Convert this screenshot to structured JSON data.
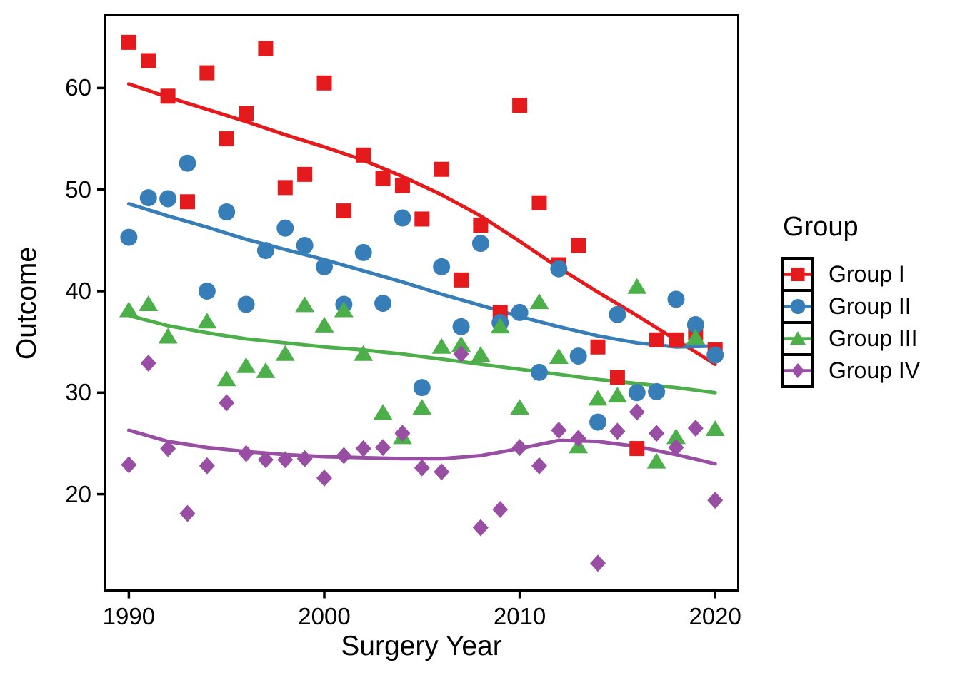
{
  "figure": {
    "background": "#FFFFFF",
    "panel": {
      "border_color": "#000000",
      "fill": "#FFFFFF",
      "gridlines": false
    }
  },
  "axes": {
    "x_title": "Surgery Year",
    "y_title": "Outcome"
  },
  "legend": {
    "title": "Group",
    "entries": [
      {
        "label": "Group I",
        "marker": "square",
        "color": "#E41A1C"
      },
      {
        "label": "Group II",
        "marker": "circle",
        "color": "#377EB8"
      },
      {
        "label": "Group III",
        "marker": "triangle",
        "color": "#4DAF4A"
      },
      {
        "label": "Group IV",
        "marker": "diamond",
        "color": "#984EA3"
      }
    ]
  },
  "chart_data": {
    "type": "scatter",
    "title": "",
    "xlabel": "Surgery Year",
    "ylabel": "Outcome",
    "xlim": [
      1988.8,
      2021.2
    ],
    "ylim": [
      10.5,
      67.2
    ],
    "x_ticks": [
      1990,
      2000,
      2010,
      2020
    ],
    "y_ticks": [
      20,
      30,
      40,
      50,
      60
    ],
    "grid": false,
    "legend_position": "right",
    "series": [
      {
        "name": "Group I",
        "marker": "square",
        "color": "#E41A1C",
        "x": [
          1990,
          1991,
          1992,
          1993,
          1994,
          1995,
          1996,
          1997,
          1998,
          1999,
          2000,
          2001,
          2002,
          2003,
          2004,
          2005,
          2006,
          2007,
          2008,
          2009,
          2010,
          2011,
          2012,
          2013,
          2014,
          2015,
          2016,
          2017,
          2018,
          2019,
          2020
        ],
        "y": [
          64.5,
          62.7,
          59.2,
          48.8,
          61.5,
          55.0,
          57.5,
          63.9,
          50.2,
          51.5,
          60.5,
          47.9,
          53.4,
          51.1,
          50.4,
          47.1,
          52.0,
          41.1,
          46.5,
          37.9,
          58.3,
          48.7,
          42.6,
          44.5,
          34.5,
          31.5,
          24.5,
          35.2,
          35.2,
          35.9,
          34.2
        ],
        "smooth_x": [
          1990,
          1992,
          1994,
          1996,
          1998,
          2000,
          2002,
          2004,
          2006,
          2008,
          2010,
          2012,
          2014,
          2016,
          2018,
          2020
        ],
        "smooth_y": [
          60.4,
          59.1,
          57.9,
          56.7,
          55.4,
          54.2,
          52.9,
          51.3,
          49.5,
          47.4,
          44.9,
          42.3,
          39.9,
          37.6,
          35.2,
          32.8
        ]
      },
      {
        "name": "Group II",
        "marker": "circle",
        "color": "#377EB8",
        "x": [
          1990,
          1991,
          1992,
          1993,
          1994,
          1995,
          1996,
          1997,
          1998,
          1999,
          2000,
          2001,
          2002,
          2003,
          2004,
          2005,
          2006,
          2007,
          2008,
          2009,
          2010,
          2011,
          2012,
          2013,
          2014,
          2015,
          2016,
          2017,
          2018,
          2019,
          2020
        ],
        "y": [
          45.3,
          49.2,
          49.1,
          52.6,
          40.0,
          47.8,
          38.7,
          44.0,
          46.2,
          44.5,
          42.4,
          38.7,
          43.8,
          38.8,
          47.2,
          30.5,
          42.4,
          36.5,
          44.7,
          36.9,
          37.9,
          32.0,
          42.2,
          33.6,
          27.1,
          37.7,
          30.0,
          30.1,
          39.2,
          36.7,
          33.7
        ],
        "smooth_x": [
          1990,
          1992,
          1994,
          1996,
          1998,
          2000,
          2002,
          2004,
          2006,
          2008,
          2010,
          2012,
          2014,
          2016,
          2018,
          2020
        ],
        "smooth_y": [
          48.6,
          47.4,
          46.3,
          45.1,
          44.1,
          43.1,
          42.0,
          40.9,
          39.7,
          38.6,
          37.5,
          36.5,
          35.6,
          34.9,
          34.5,
          34.6
        ]
      },
      {
        "name": "Group III",
        "marker": "triangle",
        "color": "#4DAF4A",
        "x": [
          1990,
          1991,
          1992,
          1994,
          1995,
          1996,
          1997,
          1998,
          1999,
          2000,
          2001,
          2002,
          2003,
          2004,
          2005,
          2006,
          2007,
          2008,
          2009,
          2010,
          2011,
          2012,
          2013,
          2014,
          2015,
          2016,
          2017,
          2018,
          2019,
          2020
        ],
        "y": [
          38.1,
          38.7,
          35.5,
          37.0,
          31.3,
          32.6,
          32.1,
          33.8,
          38.6,
          36.6,
          38.1,
          33.8,
          28.0,
          25.6,
          28.5,
          34.5,
          34.7,
          33.7,
          36.5,
          28.5,
          38.9,
          33.5,
          24.7,
          29.4,
          29.7,
          40.4,
          23.2,
          25.6,
          35.4,
          26.4
        ],
        "smooth_x": [
          1990,
          1992,
          1994,
          1996,
          1998,
          2000,
          2002,
          2004,
          2006,
          2008,
          2010,
          2012,
          2014,
          2016,
          2018,
          2020
        ],
        "smooth_y": [
          37.6,
          36.6,
          35.9,
          35.3,
          34.9,
          34.5,
          34.2,
          33.8,
          33.3,
          32.8,
          32.3,
          31.8,
          31.3,
          30.9,
          30.5,
          30.0
        ]
      },
      {
        "name": "Group IV",
        "marker": "diamond",
        "color": "#984EA3",
        "x": [
          1990,
          1991,
          1992,
          1993,
          1994,
          1995,
          1996,
          1997,
          1998,
          1999,
          2000,
          2001,
          2002,
          2003,
          2004,
          2005,
          2006,
          2007,
          2008,
          2009,
          2010,
          2011,
          2012,
          2013,
          2014,
          2015,
          2016,
          2017,
          2018,
          2019,
          2020
        ],
        "y": [
          22.9,
          32.9,
          24.5,
          18.1,
          22.8,
          29.0,
          24.0,
          23.4,
          23.4,
          23.5,
          21.6,
          23.8,
          24.5,
          24.6,
          26.0,
          22.6,
          22.2,
          33.8,
          16.7,
          18.5,
          24.6,
          22.8,
          26.3,
          25.5,
          13.2,
          26.2,
          28.1,
          26.0,
          24.6,
          26.5,
          19.4
        ],
        "smooth_x": [
          1990,
          1992,
          1994,
          1996,
          1998,
          2000,
          2002,
          2004,
          2006,
          2008,
          2010,
          2012,
          2014,
          2016,
          2018,
          2020
        ],
        "smooth_y": [
          26.3,
          25.2,
          24.6,
          24.2,
          23.9,
          23.7,
          23.6,
          23.5,
          23.5,
          23.8,
          24.5,
          25.3,
          25.2,
          24.7,
          23.9,
          23.0
        ]
      }
    ]
  }
}
